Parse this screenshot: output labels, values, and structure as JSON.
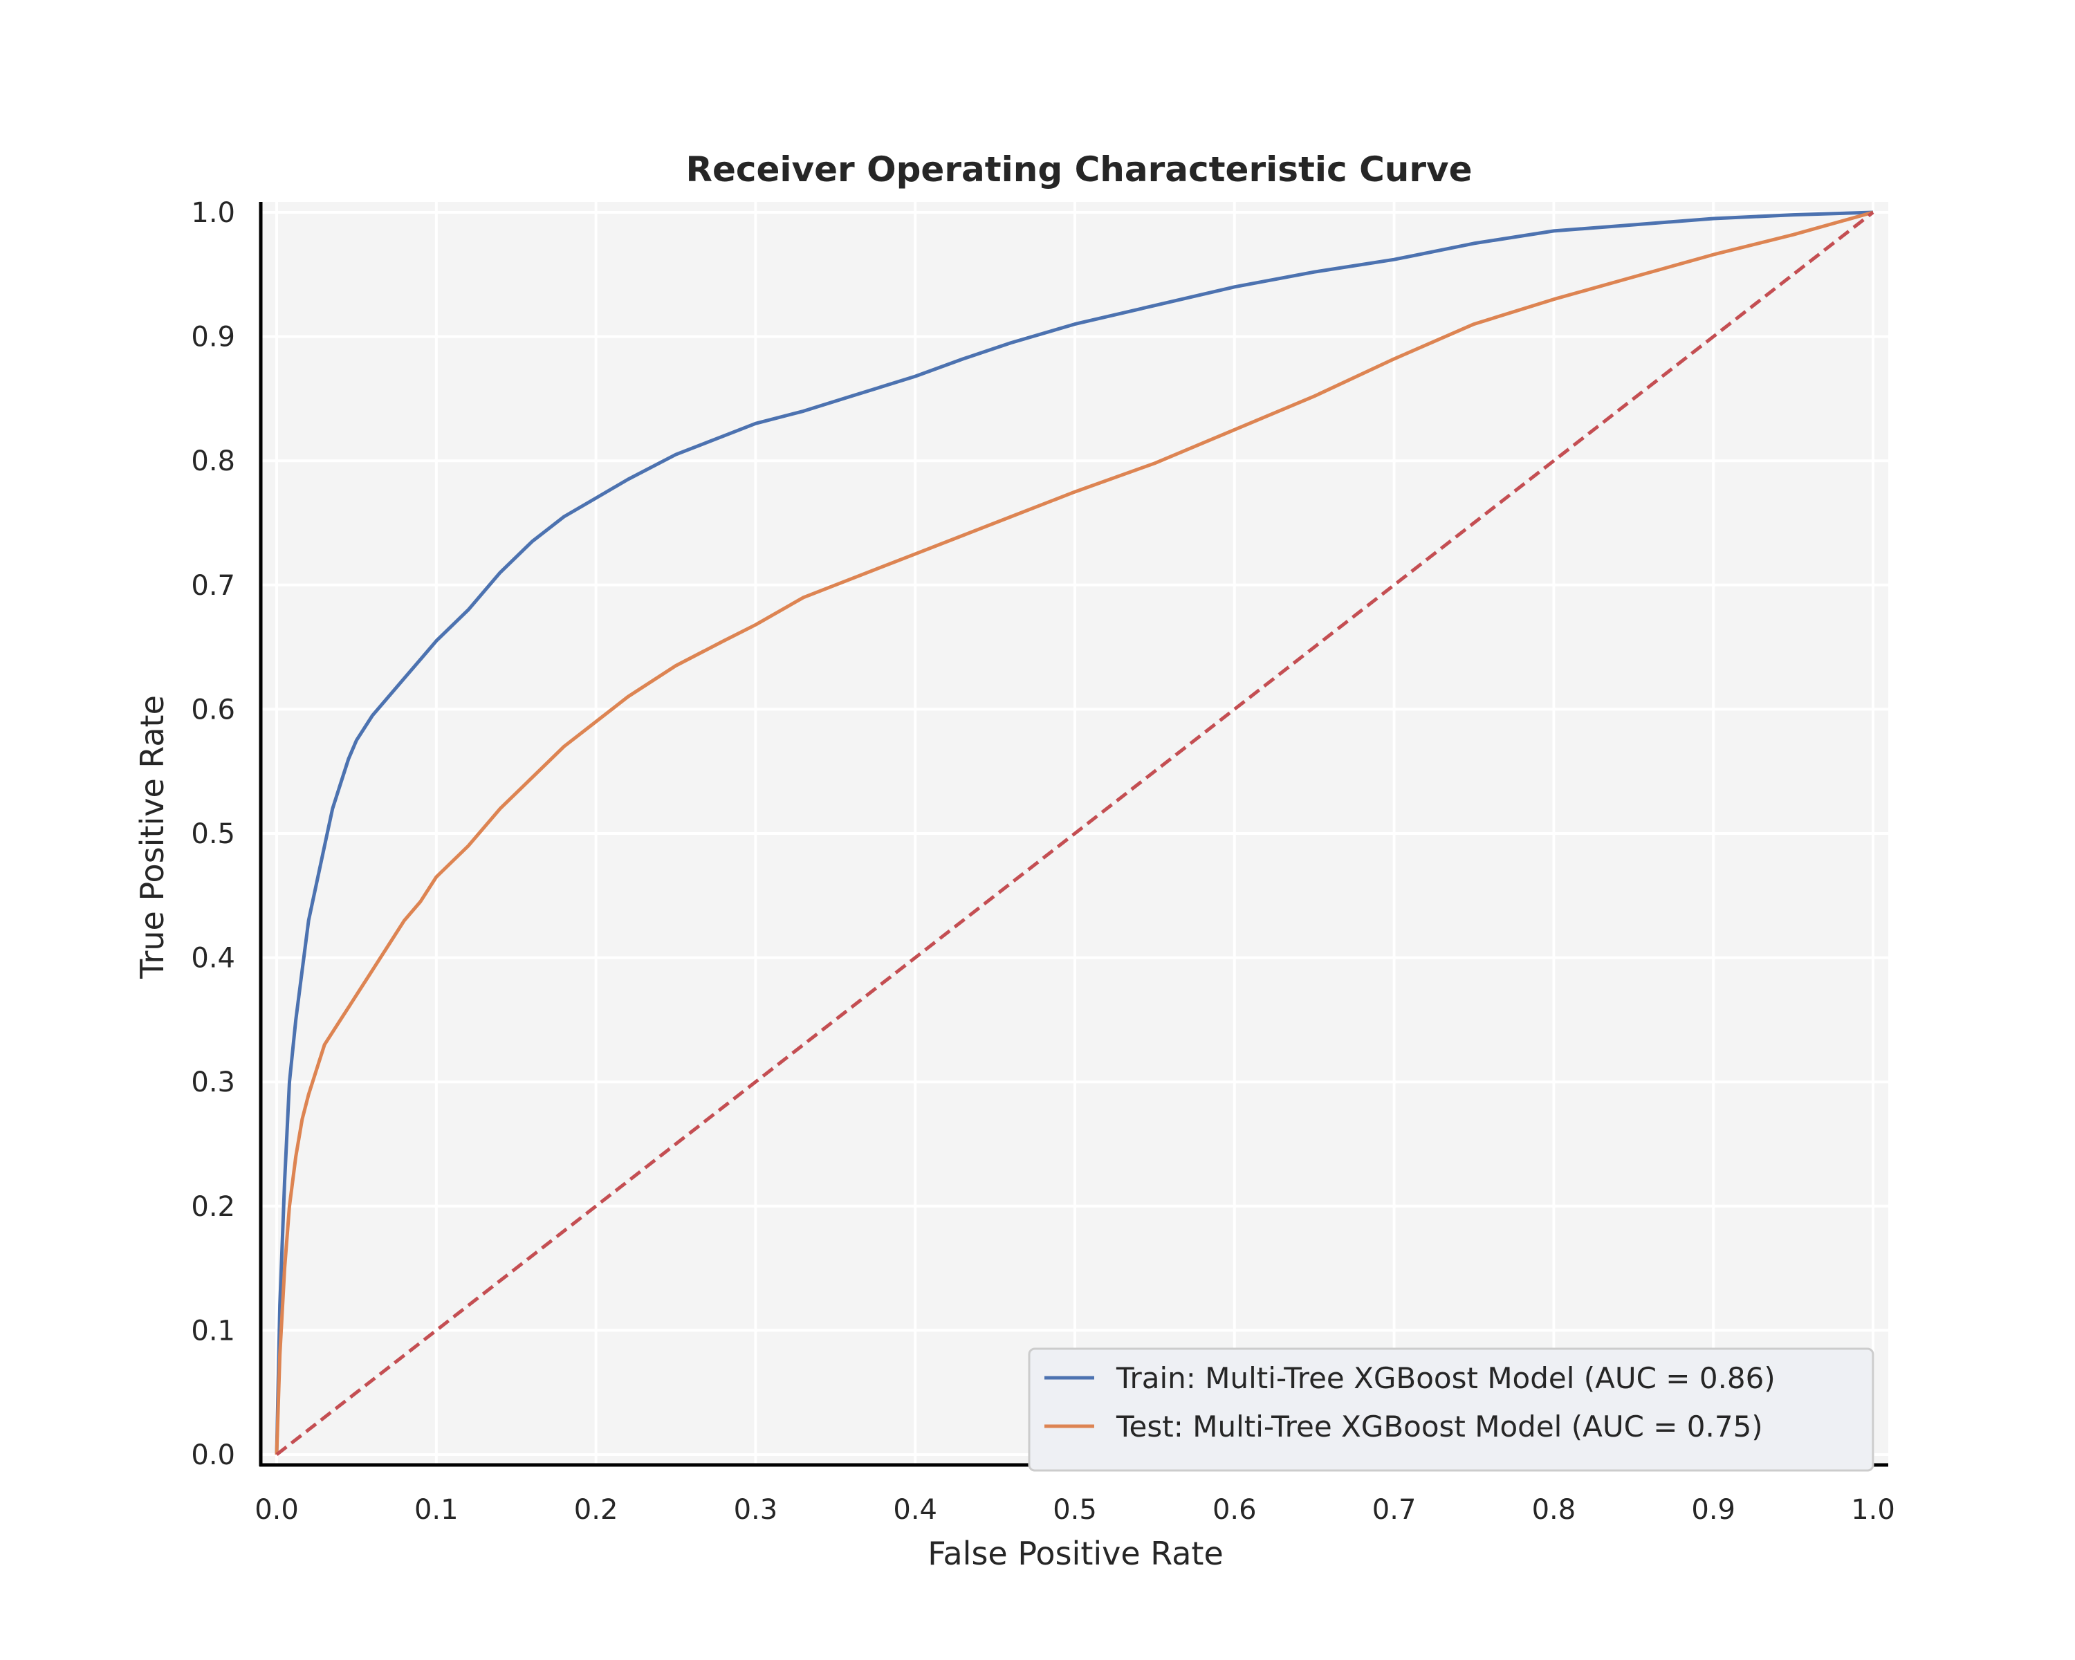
{
  "chart_data": {
    "type": "line",
    "title": "Receiver Operating Characteristic Curve",
    "xlabel": "False Positive Rate",
    "ylabel": "True Positive Rate",
    "xlim": [
      0.0,
      1.0
    ],
    "ylim": [
      0.0,
      1.0
    ],
    "x_ticks": [
      "0.0",
      "0.1",
      "0.2",
      "0.3",
      "0.4",
      "0.5",
      "0.6",
      "0.7",
      "0.8",
      "0.9",
      "1.0"
    ],
    "y_ticks": [
      "0.0",
      "0.1",
      "0.2",
      "0.3",
      "0.4",
      "0.5",
      "0.6",
      "0.7",
      "0.8",
      "0.9",
      "1.0"
    ],
    "grid": true,
    "legend_position": "lower-right",
    "series": [
      {
        "name": "Train: Multi-Tree XGBoost Model (AUC = 0.86)",
        "color": "#4c72b0",
        "style": "solid",
        "x": [
          0.0,
          0.002,
          0.005,
          0.008,
          0.012,
          0.016,
          0.02,
          0.025,
          0.03,
          0.035,
          0.04,
          0.045,
          0.05,
          0.06,
          0.07,
          0.08,
          0.09,
          0.1,
          0.12,
          0.14,
          0.16,
          0.18,
          0.2,
          0.22,
          0.25,
          0.28,
          0.3,
          0.33,
          0.36,
          0.4,
          0.43,
          0.46,
          0.5,
          0.55,
          0.6,
          0.65,
          0.7,
          0.75,
          0.8,
          0.85,
          0.9,
          0.95,
          1.0
        ],
        "y": [
          0.0,
          0.12,
          0.22,
          0.3,
          0.35,
          0.39,
          0.43,
          0.46,
          0.49,
          0.52,
          0.54,
          0.56,
          0.575,
          0.595,
          0.61,
          0.625,
          0.64,
          0.655,
          0.68,
          0.71,
          0.735,
          0.755,
          0.77,
          0.785,
          0.805,
          0.82,
          0.83,
          0.84,
          0.852,
          0.868,
          0.882,
          0.895,
          0.91,
          0.925,
          0.94,
          0.952,
          0.962,
          0.975,
          0.985,
          0.99,
          0.995,
          0.998,
          1.0
        ]
      },
      {
        "name": "Test: Multi-Tree XGBoost Model (AUC = 0.75)",
        "color": "#dd8452",
        "style": "solid",
        "x": [
          0.0,
          0.002,
          0.005,
          0.008,
          0.012,
          0.016,
          0.02,
          0.025,
          0.03,
          0.04,
          0.05,
          0.06,
          0.07,
          0.08,
          0.09,
          0.1,
          0.12,
          0.14,
          0.16,
          0.18,
          0.2,
          0.22,
          0.25,
          0.28,
          0.3,
          0.33,
          0.36,
          0.4,
          0.43,
          0.46,
          0.5,
          0.55,
          0.6,
          0.65,
          0.7,
          0.75,
          0.8,
          0.85,
          0.9,
          0.95,
          1.0
        ],
        "y": [
          0.0,
          0.08,
          0.15,
          0.2,
          0.24,
          0.27,
          0.29,
          0.31,
          0.33,
          0.35,
          0.37,
          0.39,
          0.41,
          0.43,
          0.445,
          0.465,
          0.49,
          0.52,
          0.545,
          0.57,
          0.59,
          0.61,
          0.635,
          0.655,
          0.668,
          0.69,
          0.705,
          0.725,
          0.74,
          0.755,
          0.775,
          0.798,
          0.825,
          0.852,
          0.882,
          0.91,
          0.93,
          0.948,
          0.966,
          0.982,
          1.0
        ]
      },
      {
        "name": "",
        "color": "#c44e52",
        "style": "dashed",
        "x": [
          0.0,
          1.0
        ],
        "y": [
          0.0,
          1.0
        ]
      }
    ]
  }
}
